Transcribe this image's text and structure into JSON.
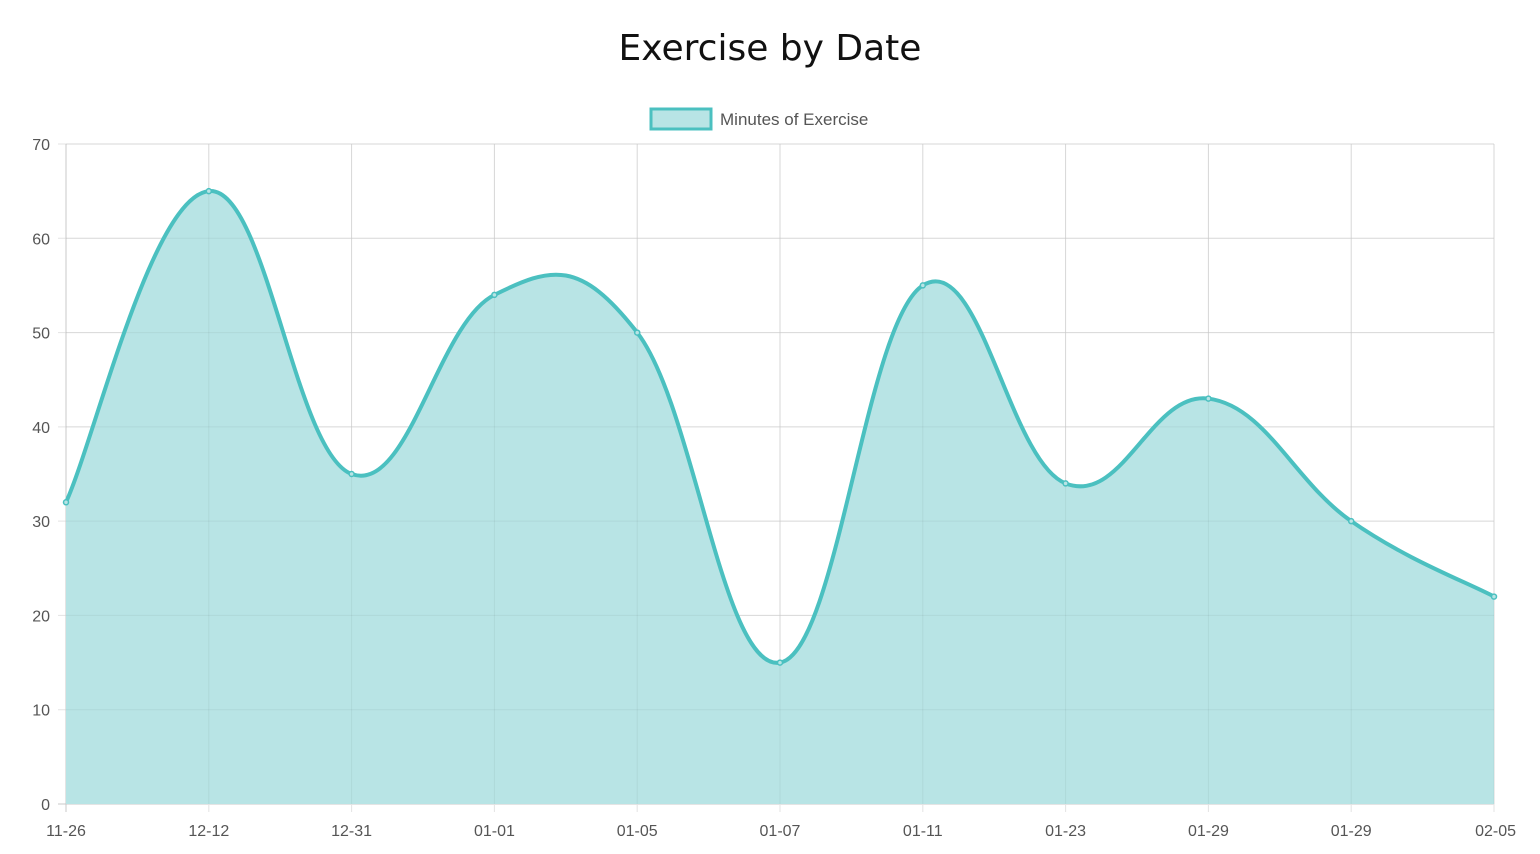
{
  "chart_data": {
    "type": "area",
    "title": "Exercise by Date",
    "xlabel": "",
    "ylabel": "",
    "categories": [
      "11-26",
      "12-12",
      "12-31",
      "01-01",
      "01-05",
      "01-07",
      "01-11",
      "01-23",
      "01-29",
      "01-29",
      "02-05"
    ],
    "series": [
      {
        "name": "Minutes of Exercise",
        "values": [
          32,
          65,
          35,
          54,
          50,
          15,
          55,
          34,
          43,
          30,
          22
        ]
      }
    ],
    "ylim": [
      0,
      70
    ],
    "yticks": [
      0,
      10,
      20,
      30,
      40,
      50,
      60,
      70
    ],
    "grid": true,
    "legend_position": "top-center",
    "colors": {
      "line": "#4bc0c0",
      "fill": "#b8e4e5",
      "grid": "#e3e3e3",
      "tick_text": "#555555",
      "title": "#111111"
    }
  }
}
